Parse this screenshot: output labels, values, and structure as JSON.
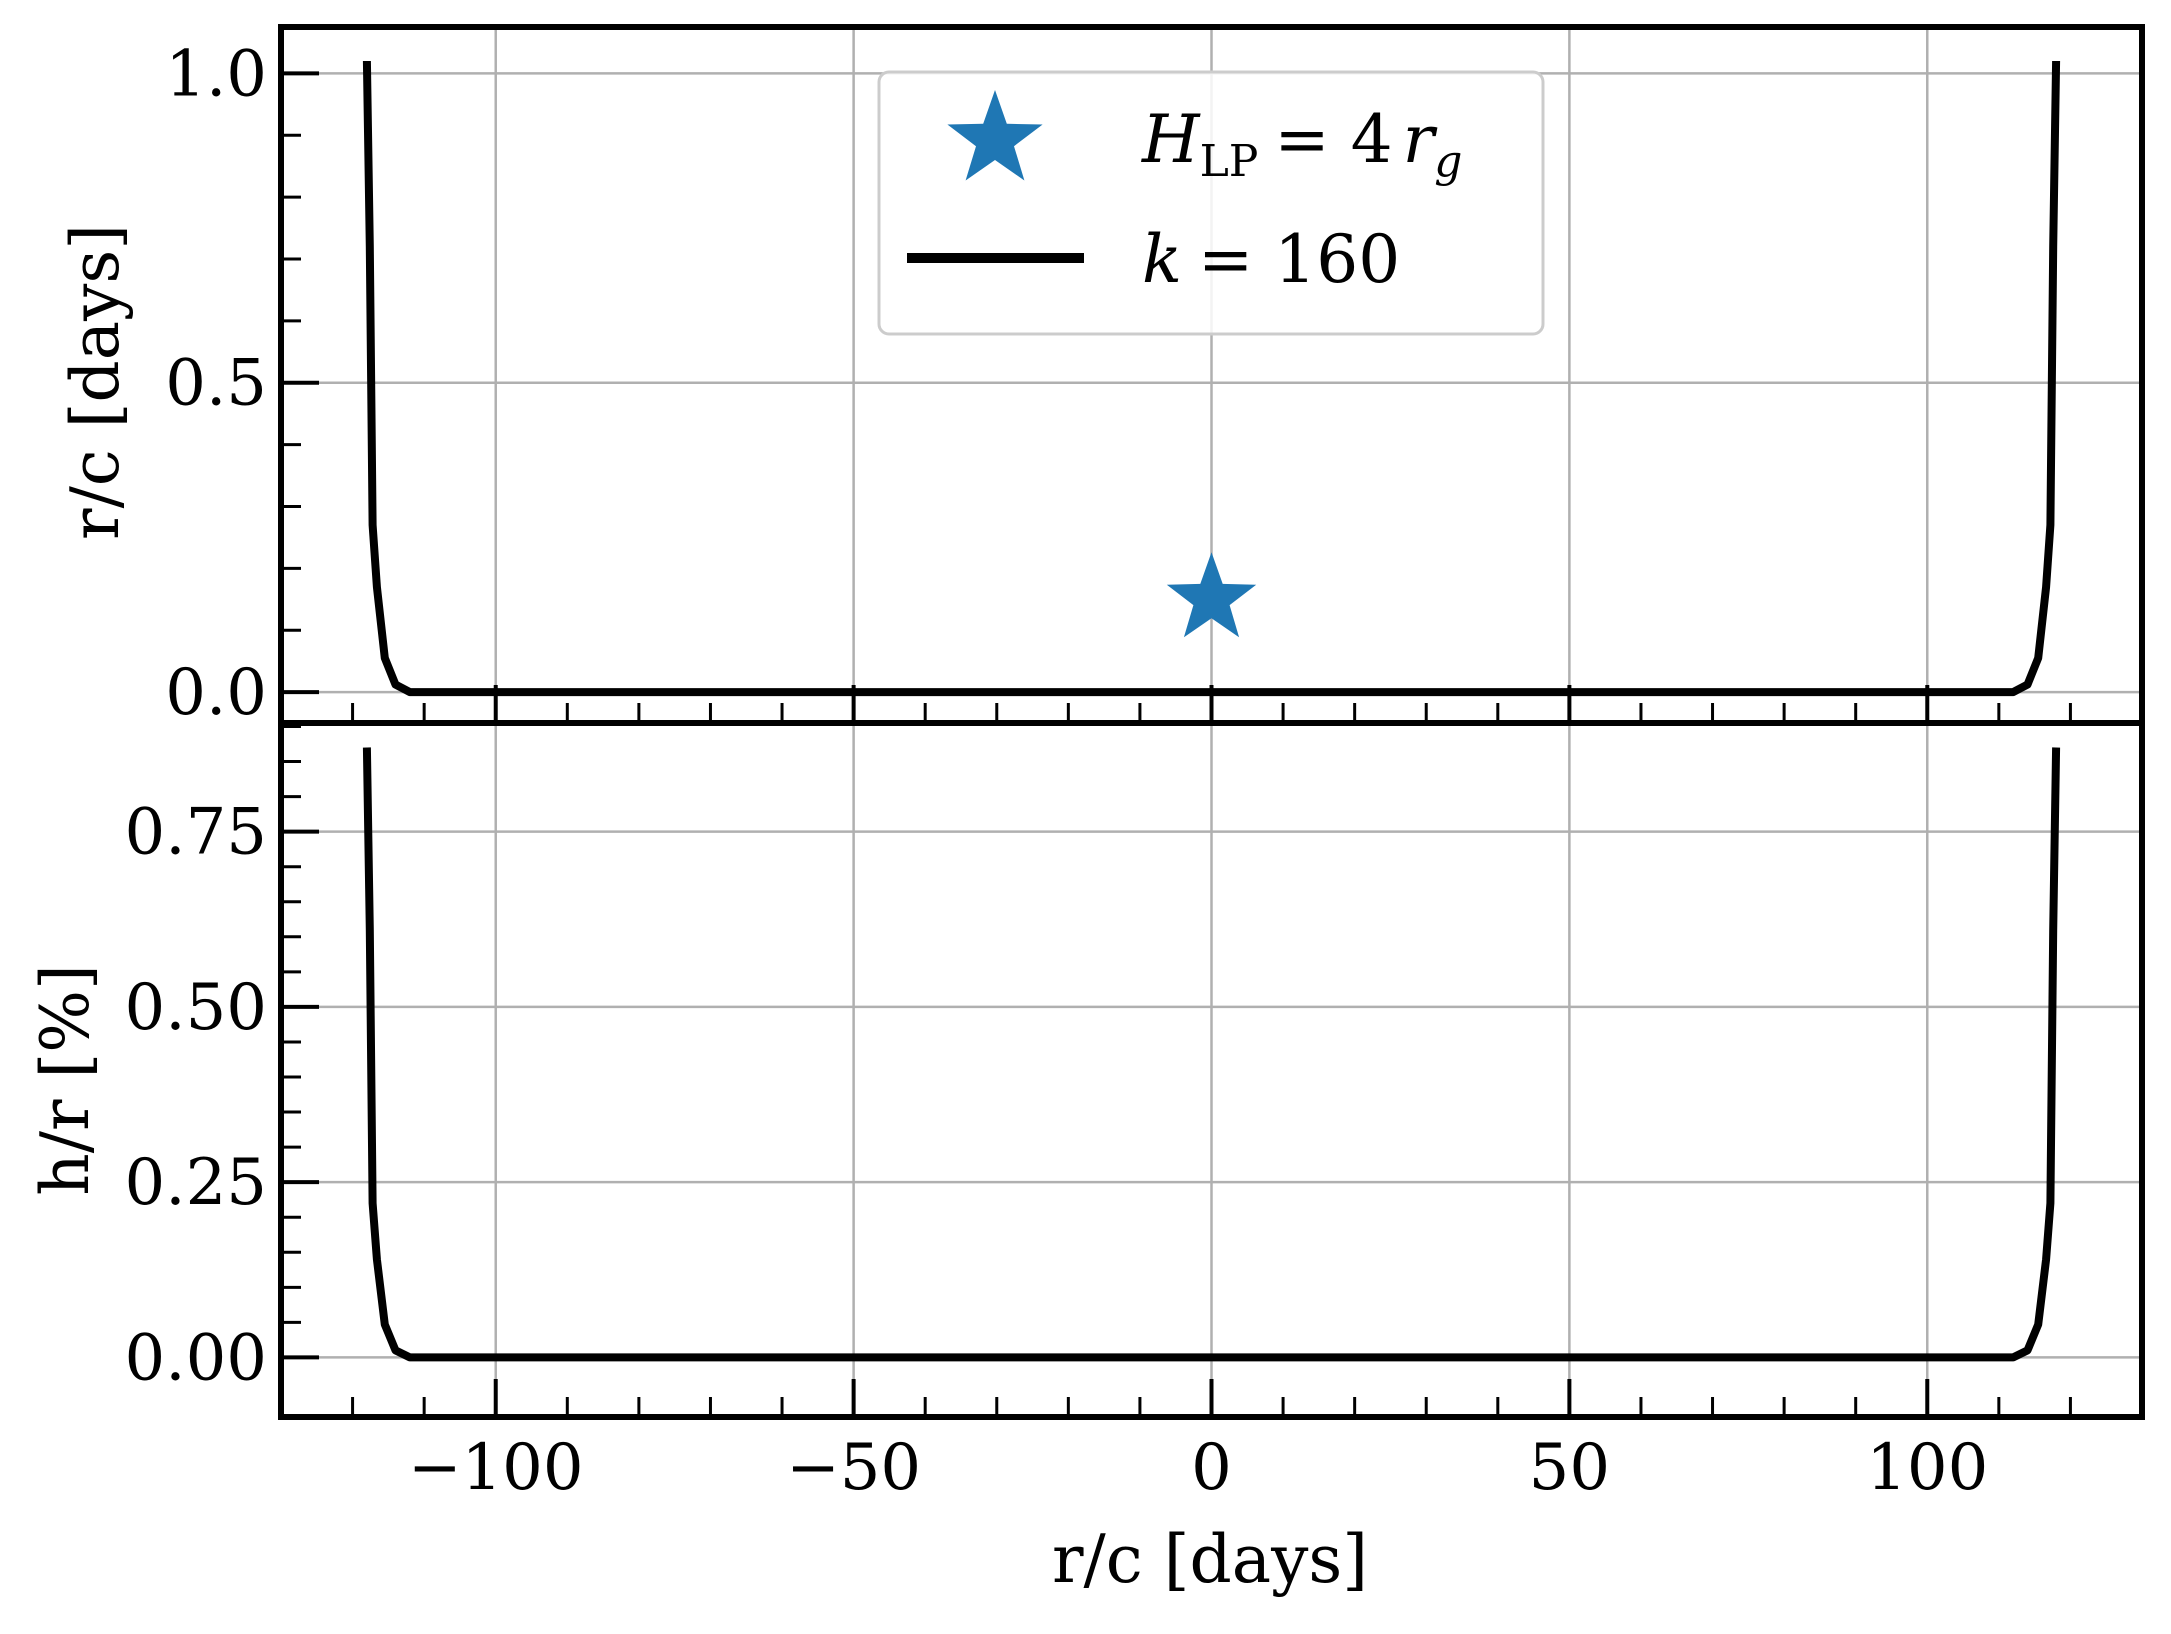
{
  "colors": {
    "curve": "#000000",
    "star": "#1f77b4",
    "grid": "#b0b0b0",
    "frame": "#000000",
    "legend_border": "#cccccc"
  },
  "legend": {
    "star_label": "H_LP = 4 r_g",
    "star_label_main": "H",
    "star_label_sub": "LP",
    "star_label_rhs": "= 4",
    "star_label_r": "r",
    "star_label_rsub": "g",
    "line_label": "k = 160",
    "line_label_var": "k",
    "line_label_rhs": "= 160",
    "placement": "upper-center"
  },
  "chart_data": [
    {
      "type": "line",
      "panel": "top",
      "ylabel": "r/c [days]",
      "xlim": [
        -130,
        130
      ],
      "ylim": [
        -0.05,
        1.075
      ],
      "grid": true,
      "yticks": [
        0.0,
        0.5,
        1.0
      ],
      "ytick_labels": [
        "0.0",
        "0.5",
        "1.0"
      ],
      "series": [
        {
          "name": "k = 160",
          "x": [
            -118.0,
            -117.6,
            -117.2,
            -116.6,
            -115.5,
            -114.0,
            -112.0,
            0,
            112.0,
            114.0,
            115.5,
            116.6,
            117.2,
            117.6,
            118.0
          ],
          "y": [
            1.02,
            0.72,
            0.27,
            0.17,
            0.055,
            0.012,
            0.0,
            0.0,
            0.0,
            0.012,
            0.055,
            0.17,
            0.27,
            0.72,
            1.02
          ]
        }
      ],
      "markers": [
        {
          "name": "H_LP = 4 r_g",
          "shape": "star",
          "x": 0,
          "y": 0.15
        }
      ]
    },
    {
      "type": "line",
      "panel": "bottom",
      "xlabel": "r/c [days]",
      "ylabel": "h/r [%]",
      "xlim": [
        -130,
        130
      ],
      "ylim": [
        -0.085,
        0.905
      ],
      "grid": true,
      "xticks": [
        -100,
        -50,
        0,
        50,
        100
      ],
      "xtick_labels": [
        "−100",
        "−50",
        "0",
        "50",
        "100"
      ],
      "yticks": [
        0.0,
        0.25,
        0.5,
        0.75
      ],
      "ytick_labels": [
        "0.00",
        "0.25",
        "0.50",
        "0.75"
      ],
      "series": [
        {
          "name": "k = 160",
          "x": [
            -118.0,
            -117.6,
            -117.2,
            -116.6,
            -115.5,
            -114.0,
            -112.0,
            0,
            112.0,
            114.0,
            115.5,
            116.6,
            117.2,
            117.6,
            118.0
          ],
          "y": [
            0.87,
            0.61,
            0.22,
            0.14,
            0.047,
            0.01,
            0.0,
            0.0,
            0.0,
            0.01,
            0.047,
            0.14,
            0.22,
            0.61,
            0.87
          ]
        }
      ]
    }
  ]
}
